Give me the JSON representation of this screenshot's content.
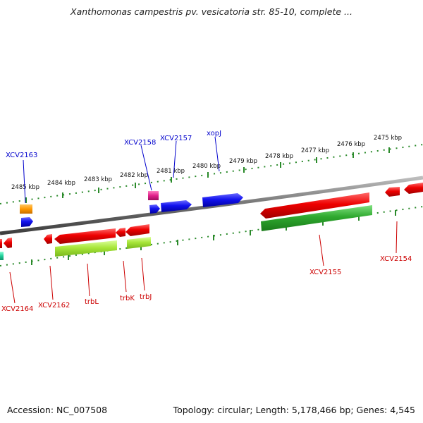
{
  "title": "Xanthomonas campestris pv. vesicatoria str. 85-10, complete ...",
  "footer": {
    "accession": "Accession: NC_007508",
    "stats": "Topology: circular; Length: 5,178,466 bp; Genes: 4,545"
  },
  "scale_labels": [
    "2485 kbp",
    "2484 kbp",
    "2483 kbp",
    "2482 kbp",
    "2481 kbp",
    "2480 kbp",
    "2479 kbp",
    "2478 kbp",
    "2477 kbp",
    "2476 kbp",
    "2475 kbp"
  ],
  "genes_top": [
    "XCV2163",
    "XCV2158",
    "XCV2157",
    "xopJ"
  ],
  "genes_bottom": [
    "XCV2164",
    "XCV2162",
    "trbL",
    "trbK",
    "trbJ",
    "XCV2155",
    "XCV2154"
  ],
  "colors": {
    "forward_label": "#0000cc",
    "reverse_label": "#cc0000",
    "tick": "#2a8a2a",
    "backbone": "#7a7a7a",
    "blue_cds": "#1414e6",
    "red_cds": "#e60000",
    "green_cds": "#2ea82e",
    "lime_cds": "#a8e63a",
    "orange_cds": "#ff9900",
    "magenta_cds": "#e0208a",
    "teal_cds": "#1fcf9a"
  }
}
